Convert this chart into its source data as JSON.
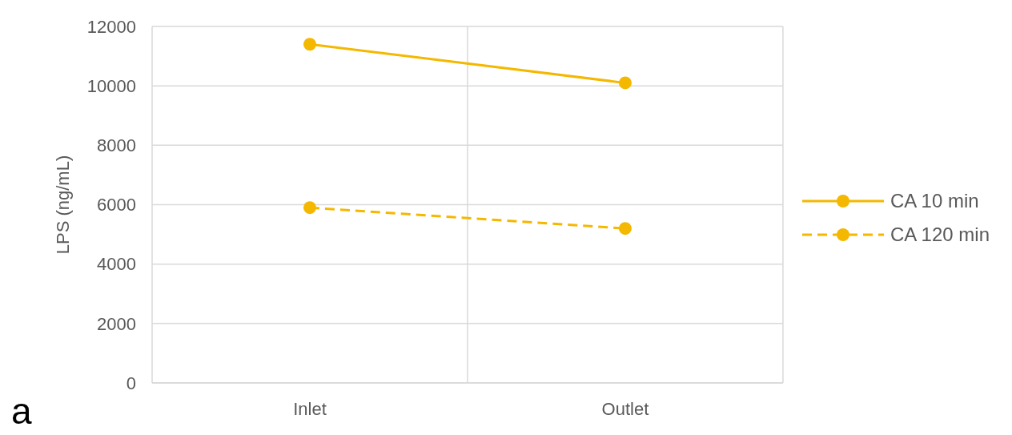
{
  "chart_data": {
    "type": "line",
    "ylabel": "LPS (ng/mL)",
    "categories": [
      "Inlet",
      "Outlet"
    ],
    "series": [
      {
        "name": "CA 10 min",
        "color": "#f5b800",
        "values": [
          11400,
          10100
        ],
        "line_style": "solid"
      },
      {
        "name": "CA 120 min",
        "color": "#f5b800",
        "values": [
          5900,
          5200
        ],
        "line_style": "dashed"
      }
    ],
    "ylim": [
      0,
      12000
    ],
    "yticks": [
      0,
      2000,
      4000,
      6000,
      8000,
      10000,
      12000
    ],
    "grid": true,
    "legend": "right",
    "marker": "circle",
    "annotations": [
      "a"
    ]
  }
}
